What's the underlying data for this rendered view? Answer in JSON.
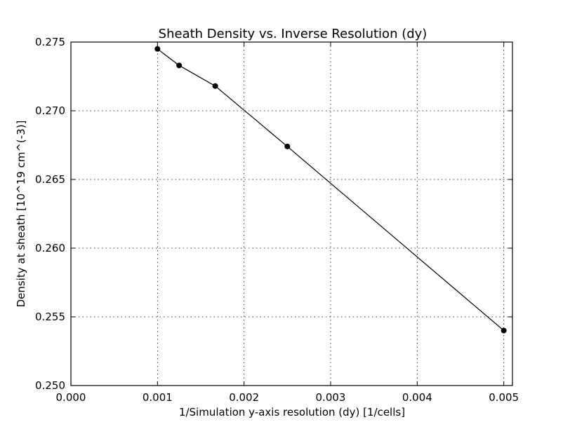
{
  "chart_data": {
    "type": "line",
    "title": "Sheath Density vs. Inverse Resolution (dy)",
    "xlabel": "1/Simulation y-axis resolution (dy) [1/cells]",
    "ylabel": "Density at sheath [10^19 cm^(-3)]",
    "xlim": [
      0.0,
      0.0051
    ],
    "ylim": [
      0.25,
      0.275
    ],
    "x_ticks": [
      0.0,
      0.001,
      0.002,
      0.003,
      0.004,
      0.005
    ],
    "x_tick_labels": [
      "0.000",
      "0.001",
      "0.002",
      "0.003",
      "0.004",
      "0.005"
    ],
    "y_ticks": [
      0.25,
      0.255,
      0.26,
      0.265,
      0.27,
      0.275
    ],
    "y_tick_labels": [
      "0.250",
      "0.255",
      "0.260",
      "0.265",
      "0.270",
      "0.275"
    ],
    "grid": true,
    "series": [
      {
        "x": [
          0.001,
          0.00125,
          0.001667,
          0.0025,
          0.005
        ],
        "y": [
          0.2745,
          0.2733,
          0.2718,
          0.2674,
          0.254
        ],
        "marker": "circle",
        "color": "#000000"
      }
    ]
  }
}
